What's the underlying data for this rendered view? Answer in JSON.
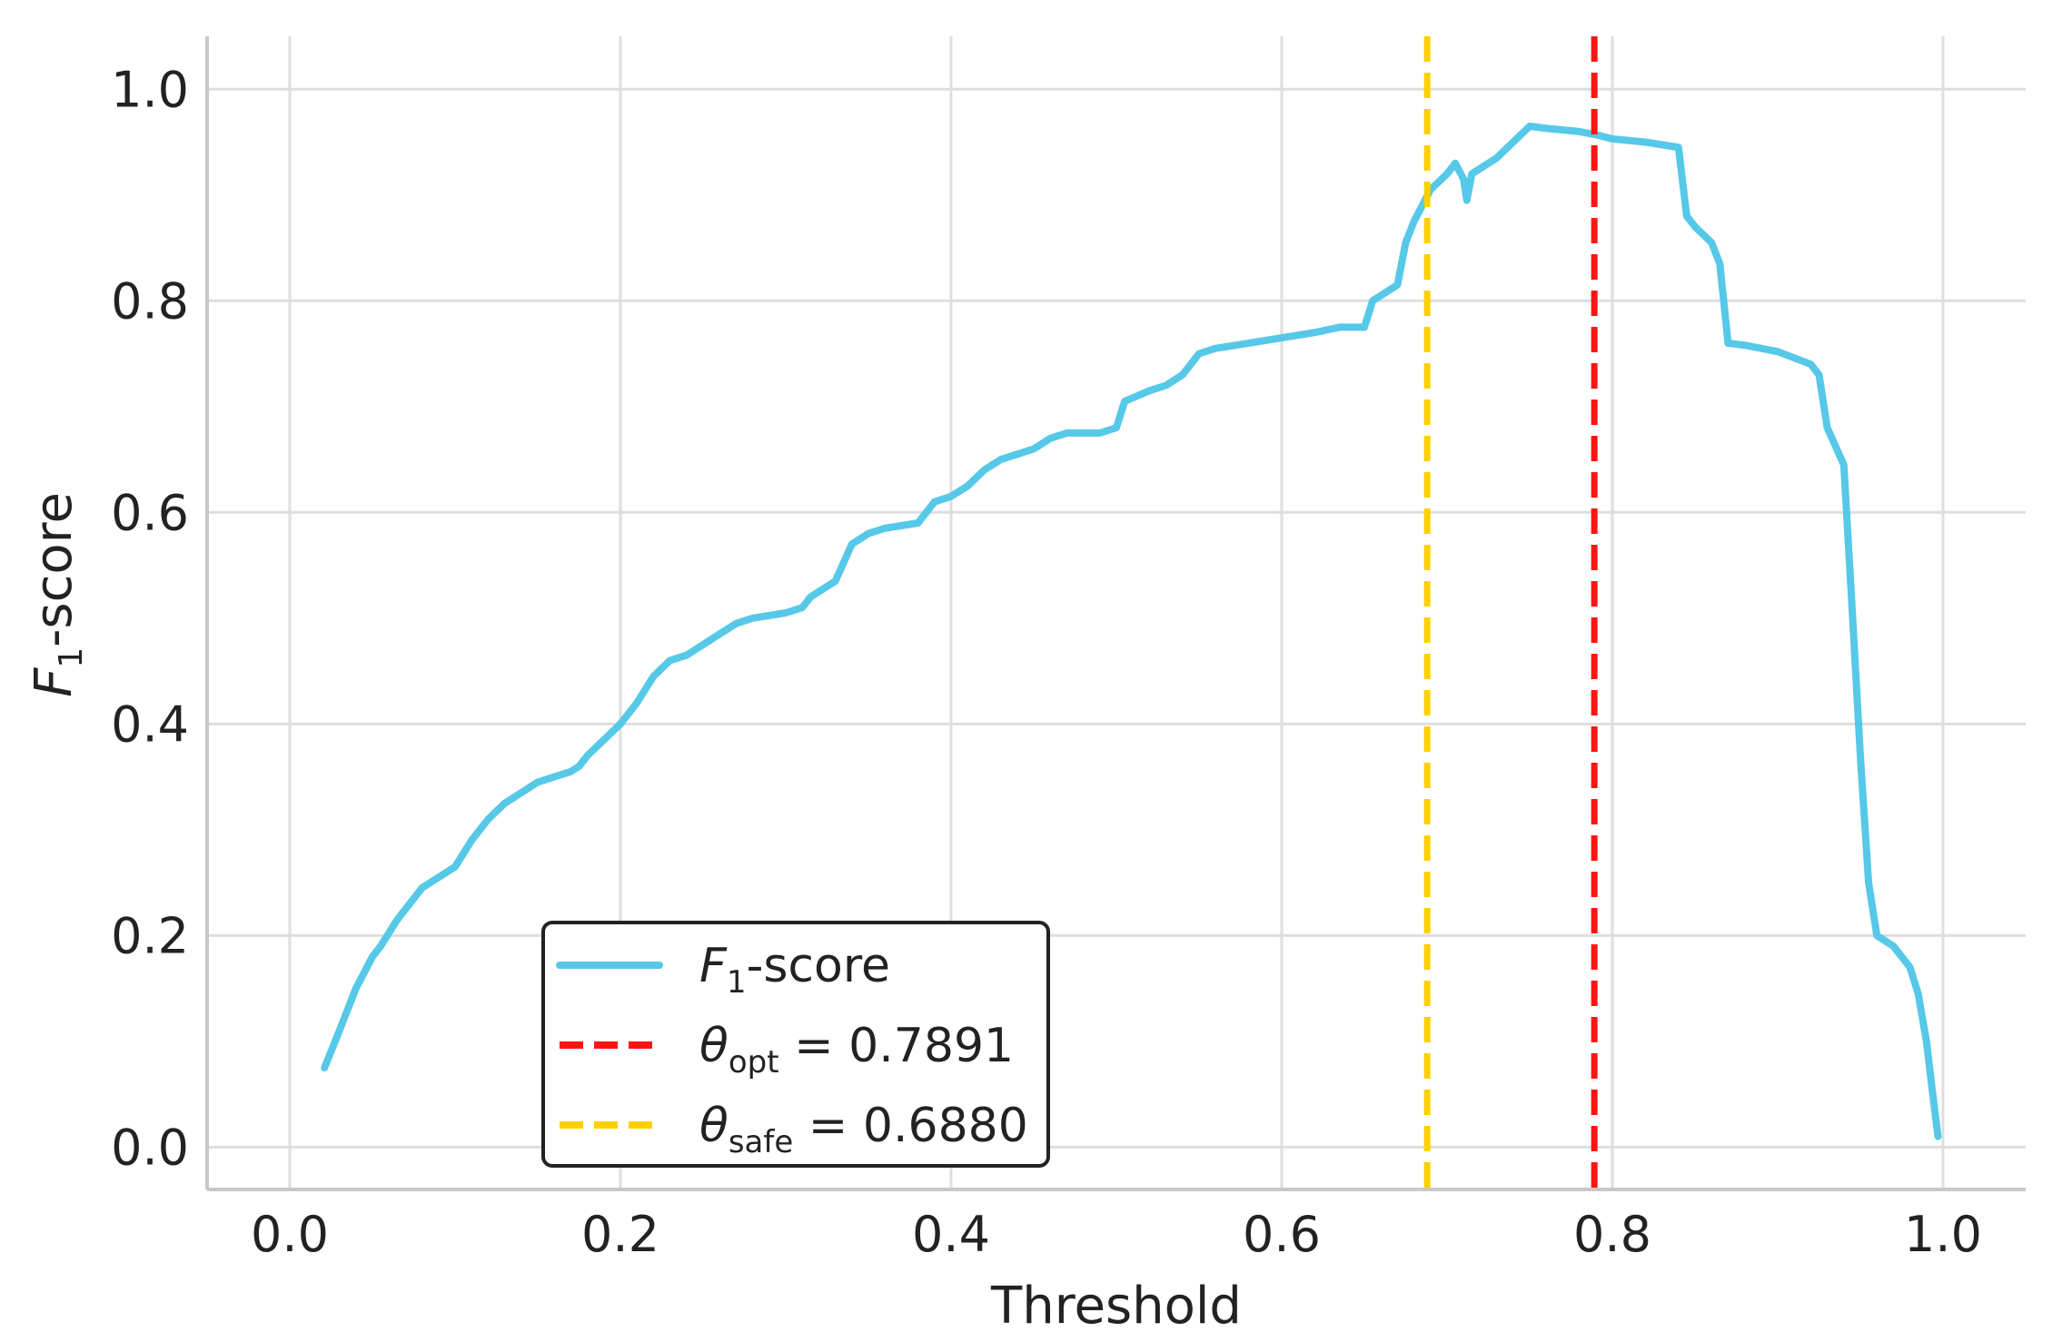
{
  "chart_data": {
    "type": "line",
    "xlabel": "Threshold",
    "ylabel": {
      "main": "F",
      "sub": "1",
      "rest": "-score"
    },
    "xlim": [
      -0.05,
      1.05
    ],
    "ylim": [
      -0.04,
      1.05
    ],
    "xticks": [
      {
        "value": 0.0,
        "label": "0.0"
      },
      {
        "value": 0.2,
        "label": "0.2"
      },
      {
        "value": 0.4,
        "label": "0.4"
      },
      {
        "value": 0.6,
        "label": "0.6"
      },
      {
        "value": 0.8,
        "label": "0.8"
      },
      {
        "value": 1.0,
        "label": "1.0"
      }
    ],
    "yticks": [
      {
        "value": 0.0,
        "label": "0.0"
      },
      {
        "value": 0.2,
        "label": "0.2"
      },
      {
        "value": 0.4,
        "label": "0.4"
      },
      {
        "value": 0.6,
        "label": "0.6"
      },
      {
        "value": 0.8,
        "label": "0.8"
      },
      {
        "value": 1.0,
        "label": "1.0"
      }
    ],
    "grid": true,
    "legend_position": "lower-left",
    "series": [
      {
        "color": "#56c8e8",
        "x": [
          0.021,
          0.03,
          0.04,
          0.05,
          0.055,
          0.065,
          0.08,
          0.09,
          0.1,
          0.11,
          0.12,
          0.13,
          0.14,
          0.15,
          0.16,
          0.17,
          0.175,
          0.18,
          0.2,
          0.21,
          0.22,
          0.23,
          0.24,
          0.25,
          0.26,
          0.27,
          0.28,
          0.3,
          0.31,
          0.315,
          0.33,
          0.34,
          0.35,
          0.36,
          0.38,
          0.39,
          0.4,
          0.41,
          0.42,
          0.43,
          0.45,
          0.46,
          0.47,
          0.48,
          0.49,
          0.5,
          0.505,
          0.52,
          0.53,
          0.54,
          0.55,
          0.56,
          0.58,
          0.6,
          0.62,
          0.635,
          0.65,
          0.655,
          0.67,
          0.675,
          0.68,
          0.69,
          0.7,
          0.705,
          0.71,
          0.712,
          0.715,
          0.72,
          0.73,
          0.74,
          0.75,
          0.76,
          0.78,
          0.79,
          0.8,
          0.82,
          0.84,
          0.845,
          0.85,
          0.86,
          0.865,
          0.87,
          0.88,
          0.9,
          0.92,
          0.925,
          0.93,
          0.94,
          0.945,
          0.95,
          0.955,
          0.96,
          0.97,
          0.98,
          0.985,
          0.99,
          0.993,
          0.997
        ],
        "y": [
          0.075,
          0.11,
          0.15,
          0.18,
          0.19,
          0.215,
          0.245,
          0.255,
          0.265,
          0.29,
          0.31,
          0.325,
          0.335,
          0.345,
          0.35,
          0.355,
          0.36,
          0.37,
          0.4,
          0.42,
          0.445,
          0.46,
          0.465,
          0.475,
          0.485,
          0.495,
          0.5,
          0.505,
          0.51,
          0.52,
          0.535,
          0.57,
          0.58,
          0.585,
          0.59,
          0.61,
          0.615,
          0.625,
          0.64,
          0.65,
          0.66,
          0.67,
          0.675,
          0.675,
          0.675,
          0.68,
          0.705,
          0.715,
          0.72,
          0.73,
          0.75,
          0.755,
          0.76,
          0.765,
          0.77,
          0.775,
          0.775,
          0.8,
          0.815,
          0.855,
          0.875,
          0.905,
          0.92,
          0.93,
          0.915,
          0.895,
          0.92,
          0.925,
          0.935,
          0.95,
          0.965,
          0.963,
          0.96,
          0.957,
          0.953,
          0.95,
          0.945,
          0.88,
          0.87,
          0.855,
          0.835,
          0.76,
          0.758,
          0.752,
          0.74,
          0.73,
          0.68,
          0.645,
          0.51,
          0.37,
          0.25,
          0.2,
          0.19,
          0.17,
          0.145,
          0.1,
          0.06,
          0.01
        ]
      }
    ],
    "vlines": [
      {
        "x": 0.7891,
        "color": "#ff1414"
      },
      {
        "x": 0.688,
        "color": "#ffd000"
      }
    ],
    "legend": {
      "entries": [
        {
          "kind": "series",
          "color": "#56c8e8",
          "main": "F",
          "sub": "1",
          "rest": "-score"
        },
        {
          "kind": "dashed",
          "color": "#ff1414",
          "main": "θ",
          "sub": "opt",
          "rest": " = 0.7891"
        },
        {
          "kind": "dashed",
          "color": "#ffd000",
          "main": "θ",
          "sub": "safe",
          "rest": " = 0.6880"
        }
      ]
    }
  }
}
